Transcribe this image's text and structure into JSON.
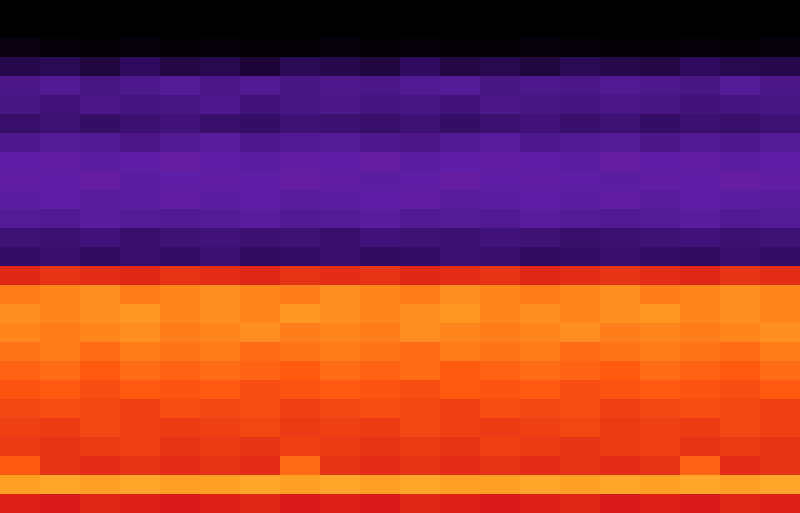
{
  "chart_data": {
    "type": "heatmap",
    "tick_labels": false,
    "zlim": [
      0,
      100
    ],
    "cells": [
      [
        0,
        0,
        0,
        0,
        0,
        0,
        0,
        0,
        0,
        0,
        0,
        0,
        0,
        0,
        0,
        0,
        0,
        0,
        0,
        0
      ],
      [
        0,
        0,
        0,
        0,
        0,
        0,
        0,
        0,
        0,
        0,
        0,
        0,
        0,
        0,
        0,
        0,
        0,
        0,
        0,
        0
      ],
      [
        8,
        4,
        3,
        5,
        2,
        4,
        3,
        2,
        5,
        3,
        4,
        2,
        3,
        5,
        4,
        3,
        2,
        4,
        3,
        5
      ],
      [
        22,
        24,
        20,
        25,
        21,
        23,
        19,
        24,
        22,
        20,
        25,
        21,
        23,
        20,
        24,
        22,
        21,
        25,
        23,
        22
      ],
      [
        34,
        36,
        33,
        35,
        37,
        34,
        36,
        33,
        35,
        34,
        36,
        37,
        33,
        35,
        34,
        36,
        35,
        33,
        37,
        34
      ],
      [
        33,
        31,
        34,
        32,
        33,
        35,
        31,
        33,
        34,
        32,
        33,
        31,
        34,
        33,
        32,
        34,
        33,
        31,
        32,
        33
      ],
      [
        28,
        30,
        27,
        29,
        31,
        28,
        27,
        30,
        29,
        28,
        30,
        27,
        29,
        31,
        28,
        30,
        27,
        29,
        28,
        30
      ],
      [
        35,
        37,
        36,
        34,
        36,
        38,
        35,
        36,
        37,
        35,
        34,
        36,
        38,
        35,
        36,
        37,
        34,
        36,
        35,
        37
      ],
      [
        40,
        41,
        39,
        40,
        42,
        40,
        39,
        41,
        40,
        42,
        39,
        40,
        41,
        40,
        39,
        42,
        40,
        41,
        39,
        40
      ],
      [
        41,
        40,
        42,
        39,
        40,
        41,
        40,
        42,
        41,
        39,
        40,
        42,
        40,
        41,
        40,
        39,
        41,
        40,
        42,
        41
      ],
      [
        39,
        40,
        38,
        39,
        41,
        39,
        40,
        38,
        39,
        40,
        41,
        38,
        39,
        40,
        39,
        41,
        38,
        40,
        39,
        38
      ],
      [
        37,
        36,
        38,
        37,
        36,
        37,
        38,
        36,
        37,
        38,
        36,
        37,
        36,
        38,
        37,
        36,
        37,
        38,
        36,
        37
      ],
      [
        30,
        29,
        31,
        28,
        30,
        31,
        29,
        30,
        28,
        31,
        30,
        29,
        31,
        30,
        28,
        29,
        30,
        31,
        29,
        30
      ],
      [
        27,
        28,
        26,
        28,
        27,
        29,
        26,
        27,
        28,
        26,
        27,
        29,
        28,
        26,
        27,
        28,
        27,
        26,
        28,
        27
      ],
      [
        72,
        74,
        73,
        72,
        74,
        73,
        72,
        74,
        73,
        74,
        72,
        73,
        74,
        72,
        73,
        74,
        73,
        72,
        74,
        73
      ],
      [
        84,
        85,
        86,
        84,
        85,
        86,
        85,
        84,
        86,
        85,
        84,
        86,
        85,
        84,
        85,
        86,
        84,
        85,
        86,
        85
      ],
      [
        86,
        85,
        86,
        87,
        85,
        86,
        85,
        87,
        86,
        85,
        86,
        87,
        85,
        86,
        85,
        86,
        87,
        85,
        86,
        85
      ],
      [
        85,
        84,
        85,
        86,
        84,
        85,
        86,
        84,
        85,
        84,
        86,
        85,
        84,
        85,
        86,
        84,
        85,
        84,
        85,
        86
      ],
      [
        83,
        84,
        82,
        84,
        83,
        84,
        82,
        83,
        84,
        83,
        82,
        84,
        83,
        84,
        82,
        83,
        84,
        83,
        82,
        84
      ],
      [
        81,
        82,
        80,
        82,
        81,
        82,
        81,
        80,
        82,
        81,
        82,
        80,
        81,
        82,
        81,
        80,
        82,
        81,
        80,
        82
      ],
      [
        79,
        80,
        78,
        80,
        79,
        80,
        78,
        79,
        80,
        79,
        78,
        80,
        79,
        80,
        78,
        79,
        80,
        79,
        78,
        80
      ],
      [
        77,
        78,
        77,
        76,
        78,
        77,
        78,
        76,
        77,
        78,
        77,
        76,
        78,
        77,
        78,
        76,
        77,
        78,
        77,
        76
      ],
      [
        76,
        75,
        77,
        76,
        75,
        76,
        77,
        75,
        76,
        75,
        77,
        76,
        75,
        76,
        77,
        75,
        76,
        75,
        77,
        76
      ],
      [
        75,
        74,
        75,
        76,
        74,
        75,
        74,
        76,
        75,
        74,
        75,
        74,
        76,
        75,
        74,
        75,
        76,
        74,
        75,
        74
      ],
      [
        80,
        74,
        73,
        74,
        73,
        74,
        73,
        82,
        74,
        73,
        74,
        73,
        74,
        73,
        74,
        73,
        74,
        81,
        73,
        74
      ],
      [
        88,
        89,
        88,
        89,
        88,
        88,
        89,
        88,
        89,
        88,
        89,
        88,
        88,
        89,
        88,
        89,
        88,
        89,
        88,
        89
      ],
      [
        71,
        70,
        72,
        71,
        70,
        71,
        72,
        70,
        71,
        70,
        72,
        71,
        70,
        71,
        72,
        70,
        71,
        70,
        72,
        71
      ]
    ]
  }
}
